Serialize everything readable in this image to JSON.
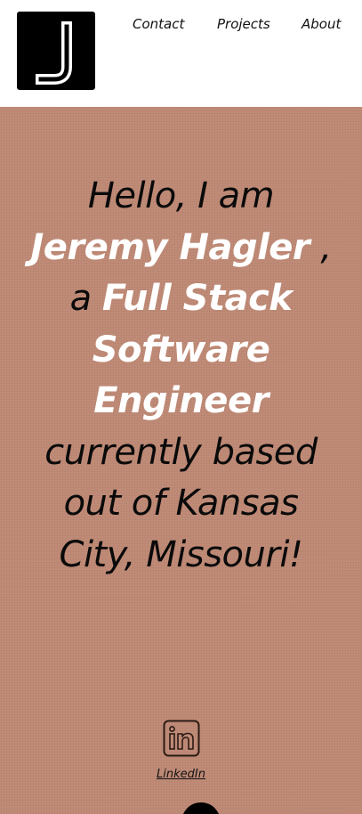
{
  "header": {
    "logo_letter": "J",
    "nav": [
      {
        "label": "Contact"
      },
      {
        "label": "Projects"
      },
      {
        "label": "About"
      }
    ]
  },
  "hero": {
    "intro_prefix": "Hello, I am",
    "name": "Jeremy Hagler",
    "intro_mid": " , a ",
    "title": "Full Stack Software Engineer",
    "intro_suffix": " currently based out of Kansas City, Missouri!"
  },
  "social": {
    "linkedin_icon": "linkedin-icon",
    "linkedin_label": "LinkedIn"
  },
  "colors": {
    "hero_background": "#bf8a76",
    "highlight_text": "#ffffff",
    "body_text": "#0a0a0a",
    "logo_background": "#000000"
  }
}
